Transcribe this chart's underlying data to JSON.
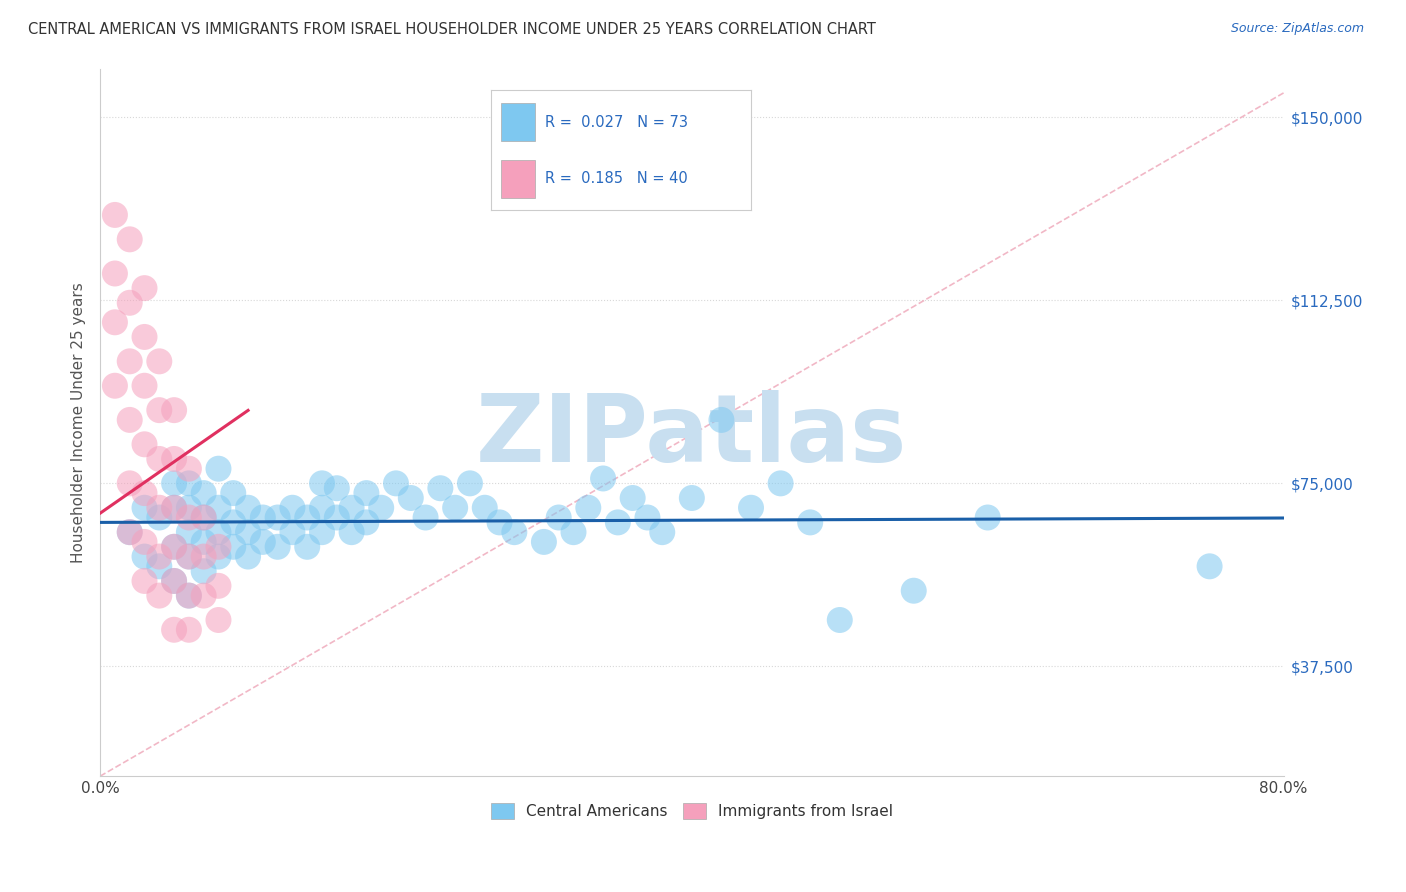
{
  "title": "CENTRAL AMERICAN VS IMMIGRANTS FROM ISRAEL HOUSEHOLDER INCOME UNDER 25 YEARS CORRELATION CHART",
  "source": "Source: ZipAtlas.com",
  "ylabel": "Householder Income Under 25 years",
  "xlim": [
    0.0,
    0.8
  ],
  "ylim": [
    15000,
    160000
  ],
  "yticks": [
    37500,
    75000,
    112500,
    150000
  ],
  "ytick_labels": [
    "$37,500",
    "$75,000",
    "$112,500",
    "$150,000"
  ],
  "xticks": [
    0.0,
    0.1,
    0.2,
    0.3,
    0.4,
    0.5,
    0.6,
    0.7,
    0.8
  ],
  "xtick_labels": [
    "0.0%",
    "",
    "",
    "",
    "",
    "",
    "",
    "",
    "80.0%"
  ],
  "R_blue": 0.027,
  "N_blue": 73,
  "R_pink": 0.185,
  "N_pink": 40,
  "blue_color": "#7ec8f0",
  "pink_color": "#f5a0bc",
  "trend_blue_color": "#1a5fa8",
  "trend_pink_color": "#e03060",
  "diag_color": "#f0b0c0",
  "watermark_color": "#c8dff0",
  "background_color": "#ffffff",
  "grid_color": "#d8d8d8",
  "blue_points_x": [
    0.02,
    0.03,
    0.03,
    0.04,
    0.04,
    0.05,
    0.05,
    0.05,
    0.05,
    0.06,
    0.06,
    0.06,
    0.06,
    0.06,
    0.07,
    0.07,
    0.07,
    0.07,
    0.08,
    0.08,
    0.08,
    0.08,
    0.09,
    0.09,
    0.09,
    0.1,
    0.1,
    0.1,
    0.11,
    0.11,
    0.12,
    0.12,
    0.13,
    0.13,
    0.14,
    0.14,
    0.15,
    0.15,
    0.15,
    0.16,
    0.16,
    0.17,
    0.17,
    0.18,
    0.18,
    0.19,
    0.2,
    0.21,
    0.22,
    0.23,
    0.24,
    0.25,
    0.26,
    0.27,
    0.28,
    0.3,
    0.31,
    0.32,
    0.33,
    0.34,
    0.35,
    0.36,
    0.37,
    0.38,
    0.4,
    0.42,
    0.44,
    0.46,
    0.48,
    0.5,
    0.55,
    0.6,
    0.75
  ],
  "blue_points_y": [
    65000,
    60000,
    70000,
    58000,
    68000,
    55000,
    62000,
    70000,
    75000,
    52000,
    60000,
    65000,
    70000,
    75000,
    57000,
    63000,
    68000,
    73000,
    60000,
    65000,
    70000,
    78000,
    62000,
    67000,
    73000,
    60000,
    65000,
    70000,
    63000,
    68000,
    62000,
    68000,
    65000,
    70000,
    62000,
    68000,
    65000,
    70000,
    75000,
    68000,
    74000,
    65000,
    70000,
    67000,
    73000,
    70000,
    75000,
    72000,
    68000,
    74000,
    70000,
    75000,
    70000,
    67000,
    65000,
    63000,
    68000,
    65000,
    70000,
    76000,
    67000,
    72000,
    68000,
    65000,
    72000,
    88000,
    70000,
    75000,
    67000,
    47000,
    53000,
    68000,
    58000
  ],
  "pink_points_x": [
    0.01,
    0.01,
    0.01,
    0.01,
    0.02,
    0.02,
    0.02,
    0.02,
    0.02,
    0.02,
    0.03,
    0.03,
    0.03,
    0.03,
    0.03,
    0.03,
    0.03,
    0.04,
    0.04,
    0.04,
    0.04,
    0.04,
    0.04,
    0.05,
    0.05,
    0.05,
    0.05,
    0.05,
    0.05,
    0.06,
    0.06,
    0.06,
    0.06,
    0.06,
    0.07,
    0.07,
    0.07,
    0.08,
    0.08,
    0.08
  ],
  "pink_points_y": [
    130000,
    118000,
    108000,
    95000,
    125000,
    112000,
    100000,
    88000,
    75000,
    65000,
    115000,
    105000,
    95000,
    83000,
    73000,
    63000,
    55000,
    100000,
    90000,
    80000,
    70000,
    60000,
    52000,
    90000,
    80000,
    70000,
    62000,
    55000,
    45000,
    78000,
    68000,
    60000,
    52000,
    45000,
    68000,
    60000,
    52000,
    62000,
    54000,
    47000
  ]
}
